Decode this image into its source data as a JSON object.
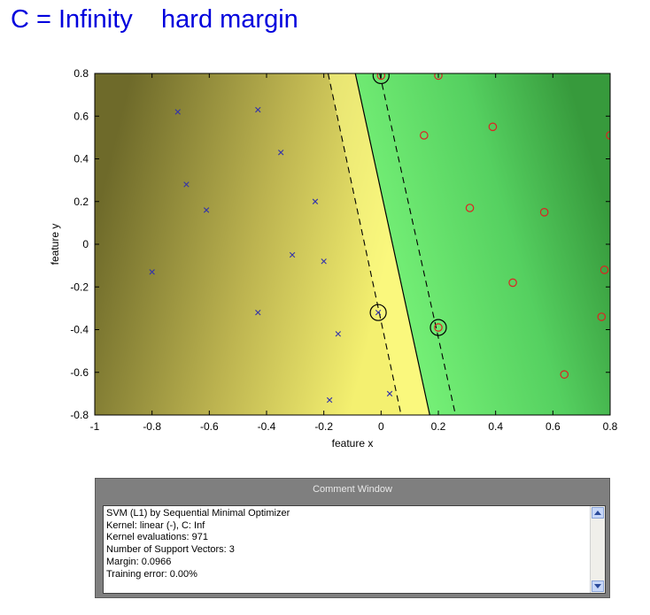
{
  "slide": {
    "title": "C = Infinity    hard margin"
  },
  "chart_data": {
    "type": "scatter",
    "xlabel": "feature x",
    "ylabel": "feature y",
    "xlim": [
      -1,
      0.8
    ],
    "ylim": [
      -0.8,
      0.8
    ],
    "xticks": [
      "-1",
      "-0.8",
      "-0.6",
      "-0.4",
      "-0.2",
      "0",
      "0.2",
      "0.4",
      "0.6",
      "0.8"
    ],
    "yticks": [
      "0.8",
      "0.6",
      "0.4",
      "0.2",
      "0",
      "-0.2",
      "-0.4",
      "-0.6",
      "-0.8"
    ],
    "grid": false,
    "decision_boundary": {
      "x_at_top": -0.09,
      "x_at_bottom": 0.17
    },
    "margin_lines": [
      {
        "x_at_top": -0.185,
        "x_at_bottom": 0.07
      },
      {
        "x_at_top": -0.005,
        "x_at_bottom": 0.26
      }
    ],
    "region_colors": {
      "negative": "#d8d05a",
      "negative_edge": "#6e6a2a",
      "boundary": "#ffff88",
      "positive": "#66ee77",
      "positive_edge": "#3a9a3a"
    },
    "series": [
      {
        "marker": "x",
        "color": "#3333aa",
        "points": [
          [
            -0.71,
            0.62
          ],
          [
            -0.43,
            0.63
          ],
          [
            -0.35,
            0.43
          ],
          [
            -0.68,
            0.28
          ],
          [
            -0.61,
            0.16
          ],
          [
            -0.23,
            0.2
          ],
          [
            -0.31,
            -0.05
          ],
          [
            -0.2,
            -0.08
          ],
          [
            -0.8,
            -0.13
          ],
          [
            -0.43,
            -0.32
          ],
          [
            -0.15,
            -0.42
          ],
          [
            -0.01,
            -0.32
          ],
          [
            0.03,
            -0.7
          ],
          [
            -0.18,
            -0.73
          ]
        ]
      },
      {
        "marker": "o",
        "color": "#dd2222",
        "points": [
          [
            0.0,
            0.79
          ],
          [
            0.2,
            0.79
          ],
          [
            0.75,
            0.82
          ],
          [
            0.15,
            0.51
          ],
          [
            0.39,
            0.55
          ],
          [
            0.8,
            0.51
          ],
          [
            0.31,
            0.17
          ],
          [
            0.57,
            0.15
          ],
          [
            0.46,
            -0.18
          ],
          [
            0.78,
            -0.12
          ],
          [
            0.77,
            -0.34
          ],
          [
            0.2,
            -0.39
          ],
          [
            0.64,
            -0.61
          ]
        ]
      }
    ],
    "support_vectors": [
      [
        0.0,
        0.79
      ],
      [
        -0.01,
        -0.32
      ],
      [
        0.2,
        -0.39
      ]
    ]
  },
  "comment_window": {
    "title": "Comment Window",
    "lines": [
      "SVM (L1) by Sequential Minimal Optimizer",
      "Kernel: linear (-), C: Inf",
      "Kernel evaluations: 971",
      "Number of Support Vectors: 3",
      "Margin: 0.0966",
      "Training error: 0.00%"
    ]
  }
}
